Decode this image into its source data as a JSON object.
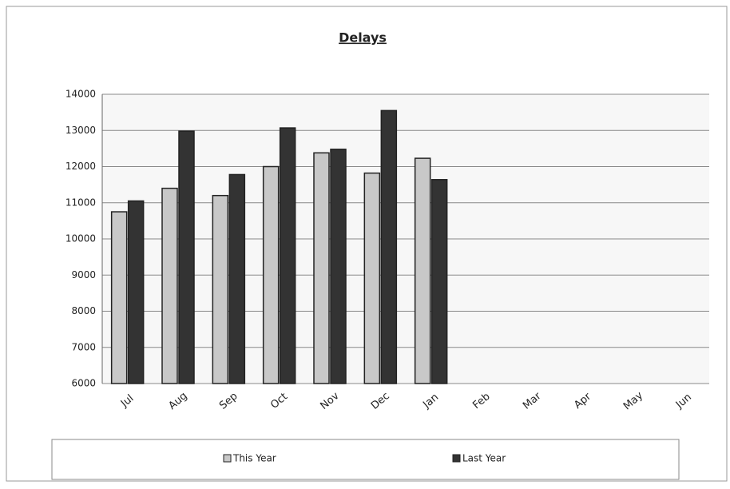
{
  "chart_data": {
    "type": "bar",
    "title": "Delays",
    "categories": [
      "Jul",
      "Aug",
      "Sep",
      "Oct",
      "Nov",
      "Dec",
      "Jan",
      "Feb",
      "Mar",
      "Apr",
      "May",
      "Jun"
    ],
    "series": [
      {
        "name": "This Year",
        "color": "#c8c8c8",
        "values": [
          10750,
          11400,
          11200,
          12000,
          12380,
          11820,
          12230,
          null,
          null,
          null,
          null,
          null
        ]
      },
      {
        "name": "Last Year",
        "color": "#333333",
        "values": [
          11050,
          12980,
          11780,
          13070,
          12480,
          13550,
          11640,
          null,
          null,
          null,
          null,
          null
        ]
      }
    ],
    "ylim": [
      6000,
      14000
    ],
    "yticks": [
      6000,
      7000,
      8000,
      9000,
      10000,
      11000,
      12000,
      13000,
      14000
    ],
    "grid": true,
    "legend": "bottom"
  }
}
